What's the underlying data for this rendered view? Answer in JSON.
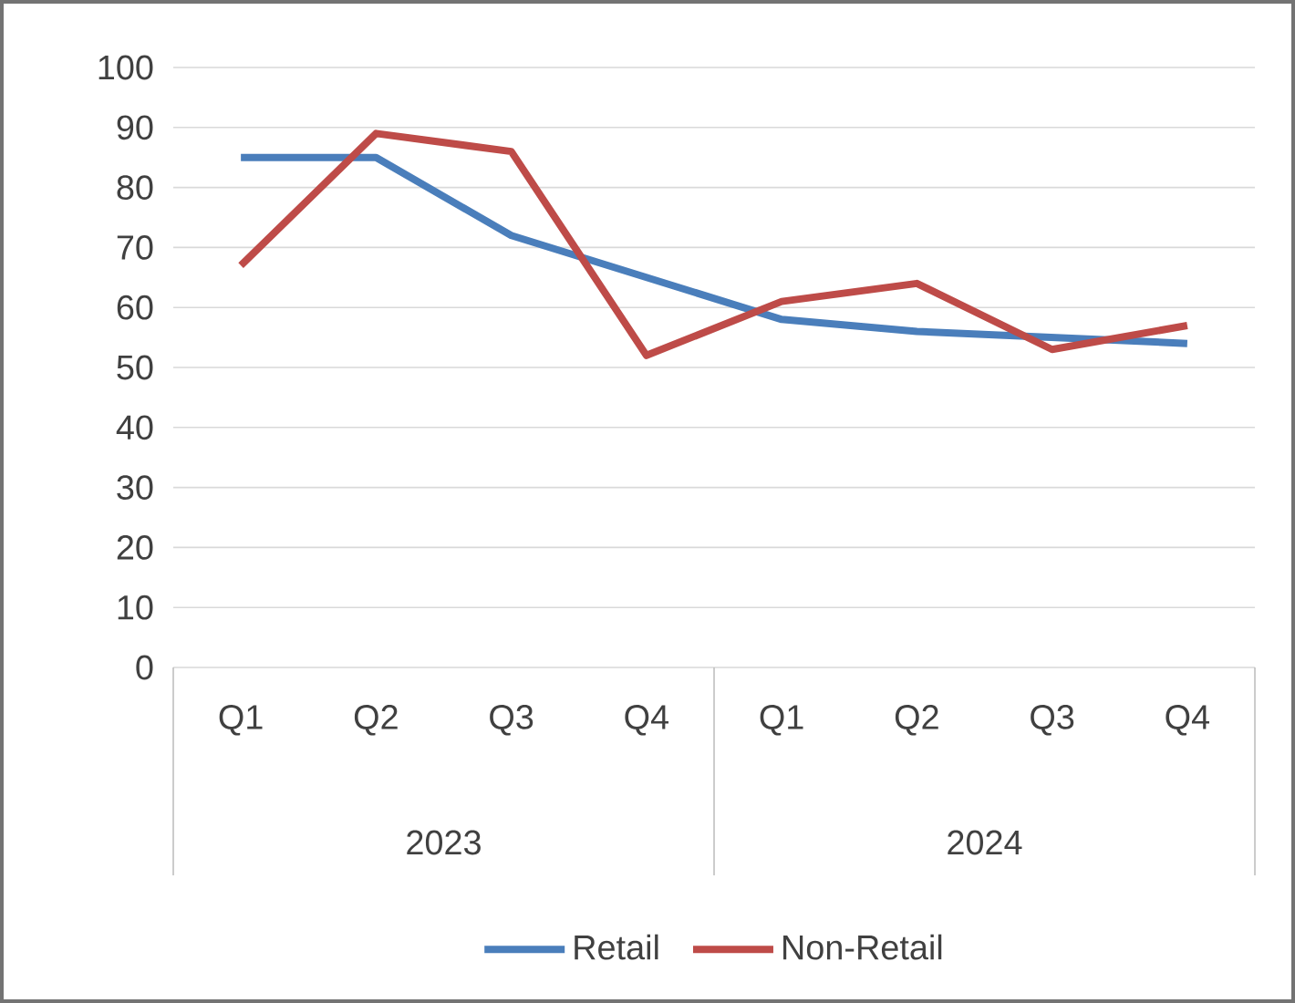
{
  "chart_data": {
    "type": "line",
    "categories": [
      "Q1",
      "Q2",
      "Q3",
      "Q4",
      "Q1",
      "Q2",
      "Q3",
      "Q4"
    ],
    "annotations": [
      "2023",
      "2024"
    ],
    "series": [
      {
        "name": "Retail",
        "color": "#4a7ebb",
        "values": [
          85,
          85,
          72,
          65,
          58,
          56,
          55,
          54
        ]
      },
      {
        "name": "Non-Retail",
        "color": "#be4b48",
        "values": [
          67,
          89,
          86,
          52,
          61,
          64,
          53,
          57
        ]
      }
    ],
    "ylim": [
      0,
      100
    ],
    "yticks": [
      0,
      10,
      20,
      30,
      40,
      50,
      60,
      70,
      80,
      90,
      100
    ],
    "grid": "y",
    "legend": "bottom"
  }
}
